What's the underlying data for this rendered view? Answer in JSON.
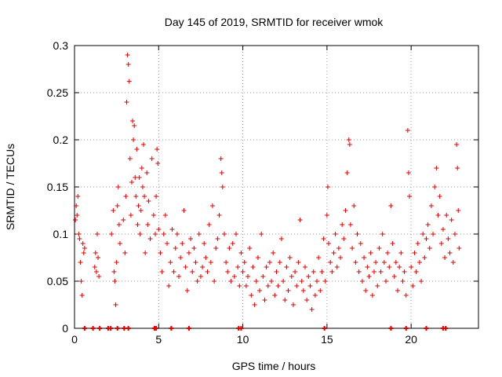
{
  "chart_data": {
    "type": "scatter",
    "title": "Day 145 of 2019, SRMTID for receiver wmok",
    "xlabel": "GPS time / hours",
    "ylabel": "SRMTID / TECUs",
    "xlim": [
      0,
      24
    ],
    "ylim": [
      0,
      0.3
    ],
    "x_ticks": [
      0,
      5,
      10,
      15,
      20
    ],
    "x_tick_labels": [
      "0",
      "5",
      "10",
      "15",
      "20"
    ],
    "y_ticks": [
      0,
      0.05,
      0.1,
      0.15,
      0.2,
      0.25,
      0.3
    ],
    "y_tick_labels": [
      "0",
      "0.05",
      "0.1",
      "0.15",
      "0.2",
      "0.25",
      "0.3"
    ],
    "grid": true,
    "marker": "+",
    "color": "#e00000",
    "series": [
      {
        "name": "SRMTID",
        "points": [
          [
            0.05,
            0.115
          ],
          [
            0.1,
            0.13
          ],
          [
            0.15,
            0.12
          ],
          [
            0.2,
            0.14
          ],
          [
            0.25,
            0.1
          ],
          [
            0.3,
            0.095
          ],
          [
            0.35,
            0.07
          ],
          [
            0.4,
            0.05
          ],
          [
            0.45,
            0.035
          ],
          [
            0.5,
            0.09
          ],
          [
            0.55,
            0.08
          ],
          [
            0.6,
            0.085
          ],
          [
            1.2,
            0.065
          ],
          [
            1.25,
            0.08
          ],
          [
            1.3,
            0.06
          ],
          [
            1.35,
            0.1
          ],
          [
            1.4,
            0.075
          ],
          [
            1.45,
            0.055
          ],
          [
            2.2,
            0.1
          ],
          [
            2.3,
            0.125
          ],
          [
            2.35,
            0.06
          ],
          [
            2.4,
            0.05
          ],
          [
            2.45,
            0.025
          ],
          [
            2.5,
            0.07
          ],
          [
            2.55,
            0.13
          ],
          [
            2.6,
            0.15
          ],
          [
            2.65,
            0.11
          ],
          [
            2.7,
            0.09
          ],
          [
            2.9,
            0.115
          ],
          [
            3.0,
            0.08
          ],
          [
            3.05,
            0.14
          ],
          [
            3.1,
            0.24
          ],
          [
            3.15,
            0.29
          ],
          [
            3.2,
            0.28
          ],
          [
            3.25,
            0.262
          ],
          [
            3.3,
            0.18
          ],
          [
            3.35,
            0.12
          ],
          [
            3.4,
            0.155
          ],
          [
            3.45,
            0.22
          ],
          [
            3.5,
            0.2
          ],
          [
            3.55,
            0.215
          ],
          [
            3.6,
            0.16
          ],
          [
            3.65,
            0.14
          ],
          [
            3.7,
            0.19
          ],
          [
            3.75,
            0.11
          ],
          [
            3.8,
            0.13
          ],
          [
            3.85,
            0.16
          ],
          [
            3.9,
            0.1
          ],
          [
            3.95,
            0.125
          ],
          [
            4.0,
            0.17
          ],
          [
            4.05,
            0.15
          ],
          [
            4.1,
            0.195
          ],
          [
            4.15,
            0.14
          ],
          [
            4.2,
            0.08
          ],
          [
            4.3,
            0.165
          ],
          [
            4.35,
            0.11
          ],
          [
            4.4,
            0.135
          ],
          [
            4.5,
            0.095
          ],
          [
            4.6,
            0.18
          ],
          [
            4.7,
            0.12
          ],
          [
            4.8,
            0.1
          ],
          [
            4.85,
            0.14
          ],
          [
            4.9,
            0.19
          ],
          [
            4.95,
            0.175
          ],
          [
            5.0,
            0.105
          ],
          [
            5.1,
            0.08
          ],
          [
            5.2,
            0.06
          ],
          [
            5.3,
            0.1
          ],
          [
            5.4,
            0.12
          ],
          [
            5.5,
            0.09
          ],
          [
            5.6,
            0.045
          ],
          [
            5.7,
            0.07
          ],
          [
            5.8,
            0.105
          ],
          [
            5.9,
            0.06
          ],
          [
            6.0,
            0.085
          ],
          [
            6.1,
            0.1
          ],
          [
            6.2,
            0.055
          ],
          [
            6.3,
            0.075
          ],
          [
            6.4,
            0.09
          ],
          [
            6.5,
            0.125
          ],
          [
            6.6,
            0.065
          ],
          [
            6.7,
            0.04
          ],
          [
            6.8,
            0.08
          ],
          [
            6.9,
            0.095
          ],
          [
            7.0,
            0.06
          ],
          [
            7.1,
            0.085
          ],
          [
            7.2,
            0.07
          ],
          [
            7.3,
            0.05
          ],
          [
            7.4,
            0.1
          ],
          [
            7.5,
            0.055
          ],
          [
            7.6,
            0.065
          ],
          [
            7.7,
            0.09
          ],
          [
            7.8,
            0.075
          ],
          [
            7.9,
            0.06
          ],
          [
            8.0,
            0.11
          ],
          [
            8.1,
            0.07
          ],
          [
            8.2,
            0.13
          ],
          [
            8.3,
            0.05
          ],
          [
            8.4,
            0.085
          ],
          [
            8.5,
            0.095
          ],
          [
            8.6,
            0.12
          ],
          [
            8.7,
            0.18
          ],
          [
            8.75,
            0.165
          ],
          [
            8.8,
            0.15
          ],
          [
            8.9,
            0.1
          ],
          [
            9.0,
            0.07
          ],
          [
            9.1,
            0.06
          ],
          [
            9.2,
            0.085
          ],
          [
            9.3,
            0.05
          ],
          [
            9.4,
            0.09
          ],
          [
            9.5,
            0.055
          ],
          [
            9.6,
            0.1
          ],
          [
            9.7,
            0.065
          ],
          [
            9.8,
            0.045
          ],
          [
            9.9,
            0.08
          ],
          [
            10.0,
            0.06
          ],
          [
            10.1,
            0.07
          ],
          [
            10.2,
            0.045
          ],
          [
            10.3,
            0.055
          ],
          [
            10.4,
            0.085
          ],
          [
            10.5,
            0.035
          ],
          [
            10.6,
            0.065
          ],
          [
            10.7,
            0.025
          ],
          [
            10.8,
            0.05
          ],
          [
            10.9,
            0.075
          ],
          [
            11.0,
            0.04
          ],
          [
            11.1,
            0.1
          ],
          [
            11.2,
            0.055
          ],
          [
            11.3,
            0.03
          ],
          [
            11.4,
            0.065
          ],
          [
            11.5,
            0.045
          ],
          [
            11.6,
            0.07
          ],
          [
            11.7,
            0.05
          ],
          [
            11.8,
            0.08
          ],
          [
            11.9,
            0.035
          ],
          [
            12.0,
            0.06
          ],
          [
            12.1,
            0.045
          ],
          [
            12.2,
            0.07
          ],
          [
            12.3,
            0.095
          ],
          [
            12.4,
            0.05
          ],
          [
            12.5,
            0.03
          ],
          [
            12.6,
            0.065
          ],
          [
            12.7,
            0.04
          ],
          [
            12.8,
            0.075
          ],
          [
            12.9,
            0.055
          ],
          [
            13.0,
            0.025
          ],
          [
            13.1,
            0.06
          ],
          [
            13.2,
            0.045
          ],
          [
            13.3,
            0.07
          ],
          [
            13.4,
            0.115
          ],
          [
            13.5,
            0.05
          ],
          [
            13.6,
            0.04
          ],
          [
            13.7,
            0.065
          ],
          [
            13.8,
            0.03
          ],
          [
            13.9,
            0.055
          ],
          [
            14.0,
            0.045
          ],
          [
            14.1,
            0.02
          ],
          [
            14.2,
            0.06
          ],
          [
            14.3,
            0.035
          ],
          [
            14.4,
            0.05
          ],
          [
            14.5,
            0.075
          ],
          [
            14.6,
            0.04
          ],
          [
            14.7,
            0.06
          ],
          [
            14.8,
            0.095
          ],
          [
            14.9,
            0.05
          ],
          [
            15.0,
            0.12
          ],
          [
            15.05,
            0.15
          ],
          [
            15.1,
            0.09
          ],
          [
            15.2,
            0.07
          ],
          [
            15.3,
            0.06
          ],
          [
            15.4,
            0.08
          ],
          [
            15.5,
            0.1
          ],
          [
            15.6,
            0.065
          ],
          [
            15.7,
            0.085
          ],
          [
            15.8,
            0.075
          ],
          [
            15.9,
            0.11
          ],
          [
            16.0,
            0.095
          ],
          [
            16.1,
            0.125
          ],
          [
            16.2,
            0.165
          ],
          [
            16.3,
            0.2
          ],
          [
            16.35,
            0.195
          ],
          [
            16.4,
            0.11
          ],
          [
            16.5,
            0.085
          ],
          [
            16.6,
            0.13
          ],
          [
            16.7,
            0.07
          ],
          [
            16.8,
            0.1
          ],
          [
            16.9,
            0.06
          ],
          [
            17.0,
            0.09
          ],
          [
            17.1,
            0.05
          ],
          [
            17.2,
            0.075
          ],
          [
            17.3,
            0.04
          ],
          [
            17.4,
            0.065
          ],
          [
            17.5,
            0.055
          ],
          [
            17.6,
            0.08
          ],
          [
            17.7,
            0.035
          ],
          [
            17.8,
            0.06
          ],
          [
            17.9,
            0.07
          ],
          [
            18.0,
            0.045
          ],
          [
            18.1,
            0.085
          ],
          [
            18.2,
            0.06
          ],
          [
            18.3,
            0.1
          ],
          [
            18.4,
            0.07
          ],
          [
            18.5,
            0.05
          ],
          [
            18.6,
            0.08
          ],
          [
            18.7,
            0.065
          ],
          [
            18.8,
            0.13
          ],
          [
            18.9,
            0.09
          ],
          [
            19.0,
            0.055
          ],
          [
            19.1,
            0.07
          ],
          [
            19.2,
            0.04
          ],
          [
            19.3,
            0.065
          ],
          [
            19.4,
            0.08
          ],
          [
            19.5,
            0.05
          ],
          [
            19.6,
            0.06
          ],
          [
            19.7,
            0.035
          ],
          [
            19.8,
            0.21
          ],
          [
            19.85,
            0.165
          ],
          [
            19.9,
            0.14
          ],
          [
            20.0,
            0.065
          ],
          [
            20.1,
            0.045
          ],
          [
            20.2,
            0.08
          ],
          [
            20.3,
            0.06
          ],
          [
            20.4,
            0.09
          ],
          [
            20.5,
            0.07
          ],
          [
            20.6,
            0.05
          ],
          [
            20.7,
            0.1
          ],
          [
            20.8,
            0.075
          ],
          [
            20.9,
            0.095
          ],
          [
            21.0,
            0.11
          ],
          [
            21.1,
            0.085
          ],
          [
            21.2,
            0.13
          ],
          [
            21.3,
            0.1
          ],
          [
            21.4,
            0.15
          ],
          [
            21.5,
            0.17
          ],
          [
            21.6,
            0.12
          ],
          [
            21.7,
            0.14
          ],
          [
            21.8,
            0.09
          ],
          [
            21.9,
            0.105
          ],
          [
            22.0,
            0.075
          ],
          [
            22.1,
            0.12
          ],
          [
            22.2,
            0.095
          ],
          [
            22.3,
            0.08
          ],
          [
            22.4,
            0.115
          ],
          [
            22.5,
            0.07
          ],
          [
            22.6,
            0.1
          ],
          [
            22.7,
            0.195
          ],
          [
            22.75,
            0.17
          ],
          [
            22.8,
            0.125
          ],
          [
            22.85,
            0.085
          ]
        ]
      }
    ],
    "zero_markers_x": [
      0.6,
      1.1,
      1.5,
      2.0,
      2.15,
      2.55,
      2.95,
      3.2,
      4.75,
      4.85,
      5.75,
      6.8,
      9.75,
      9.9,
      14.85,
      18.8,
      19.7,
      20.9,
      21.9,
      22.05
    ]
  }
}
